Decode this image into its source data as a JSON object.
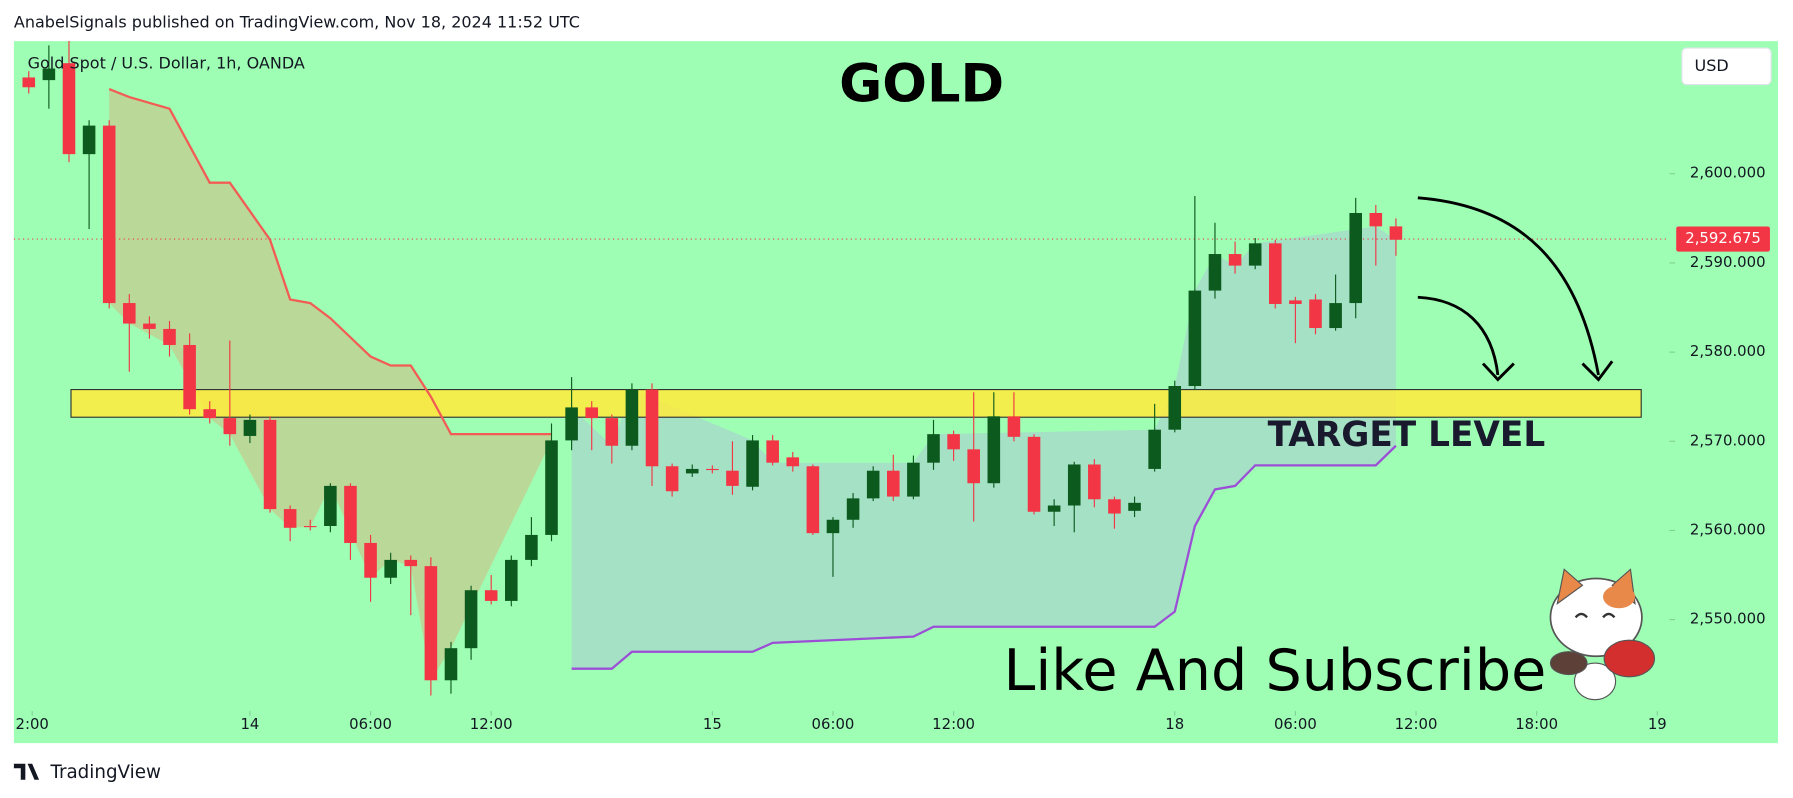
{
  "header": {
    "text": "AnabelSignals published on TradingView.com, Nov 18, 2024 11:52 UTC"
  },
  "footer": {
    "brand": "TradingView"
  },
  "chart_data": {
    "type": "candlestick",
    "title": "GOLD",
    "subtitle": "Gold Spot / U.S. Dollar, 1h, OANDA",
    "currency": "USD",
    "annotation": "Like And Subscribe",
    "up_color": "#0d5a1e",
    "down_color": "#f23645",
    "x": [
      0,
      1,
      2,
      3,
      4,
      5,
      6,
      7,
      8,
      9,
      10,
      11,
      12,
      13,
      14,
      15,
      16,
      17,
      18,
      19,
      20,
      21,
      22,
      23,
      24,
      25,
      26,
      27,
      28,
      29,
      30,
      31,
      32,
      33,
      34,
      35,
      36,
      37,
      38,
      39,
      40,
      41,
      42,
      43,
      44,
      45,
      46,
      47,
      48,
      49,
      50,
      51,
      52,
      53,
      54,
      55,
      56,
      57,
      58,
      59,
      60,
      61,
      62,
      63,
      64,
      65,
      66,
      67,
      68
    ],
    "open": [
      2610.8,
      2610.5,
      2612.4,
      2602.2,
      2605.4,
      2585.5,
      2583.2,
      2582.6,
      2580.8,
      2573.6,
      2572.6,
      2570.6,
      2572.4,
      2562.4,
      2560.5,
      2560.5,
      2565.0,
      2558.6,
      2554.7,
      2556.7,
      2556.0,
      2543.2,
      2546.8,
      2553.3,
      2552.1,
      2556.7,
      2559.5,
      2570.1,
      2573.8,
      2572.6,
      2569.5,
      2575.8,
      2567.2,
      2566.4,
      2566.9,
      2566.7,
      2564.9,
      2570.1,
      2568.2,
      2567.2,
      2559.7,
      2561.2,
      2563.6,
      2566.7,
      2563.8,
      2567.6,
      2570.8,
      2569.1,
      2565.3,
      2572.8,
      2570.5,
      2562.1,
      2562.8,
      2567.4,
      2563.5,
      2562.2,
      2566.9,
      2571.3,
      2576.2,
      2586.9,
      2591.0,
      2589.7,
      2592.2,
      2585.8,
      2585.9,
      2582.7,
      2585.5,
      2595.6,
      2594.1
    ],
    "high": [
      2611.5,
      2614.4,
      2614.9,
      2606.0,
      2606.0,
      2586.5,
      2584.0,
      2583.5,
      2582.1,
      2574.5,
      2581.3,
      2573.0,
      2572.8,
      2562.8,
      2561.2,
      2565.3,
      2565.3,
      2559.5,
      2557.5,
      2557.2,
      2557.0,
      2547.5,
      2553.8,
      2555.0,
      2557.2,
      2561.5,
      2572.0,
      2577.2,
      2574.5,
      2573.0,
      2576.5,
      2576.5,
      2567.5,
      2567.4,
      2567.3,
      2570.0,
      2570.7,
      2570.7,
      2568.8,
      2567.4,
      2561.5,
      2564.2,
      2567.2,
      2568.5,
      2568.4,
      2572.4,
      2571.2,
      2575.5,
      2575.5,
      2575.5,
      2570.8,
      2563.5,
      2567.7,
      2568.0,
      2563.8,
      2563.8,
      2574.2,
      2576.8,
      2597.5,
      2594.5,
      2592.4,
      2592.8,
      2592.6,
      2586.2,
      2586.5,
      2588.7,
      2597.3,
      2596.5,
      2595.0
    ],
    "low": [
      2609.0,
      2607.3,
      2601.3,
      2593.8,
      2584.9,
      2577.8,
      2581.5,
      2579.5,
      2573.0,
      2572.0,
      2569.5,
      2569.8,
      2562.0,
      2558.8,
      2560.0,
      2559.8,
      2556.7,
      2552.0,
      2554.0,
      2550.5,
      2541.5,
      2541.7,
      2545.5,
      2551.7,
      2551.5,
      2556.0,
      2558.8,
      2569.0,
      2569.0,
      2567.5,
      2569.0,
      2565.0,
      2563.8,
      2566.0,
      2566.4,
      2564.0,
      2564.5,
      2567.3,
      2566.6,
      2559.5,
      2554.8,
      2560.3,
      2563.3,
      2563.3,
      2563.5,
      2566.8,
      2567.8,
      2561.0,
      2564.8,
      2570.0,
      2561.8,
      2560.5,
      2559.8,
      2562.6,
      2560.2,
      2561.5,
      2566.6,
      2571.0,
      2575.8,
      2586.0,
      2588.8,
      2589.3,
      2584.9,
      2581.0,
      2582.0,
      2582.4,
      2583.8,
      2589.7,
      2590.8
    ],
    "close": [
      2609.7,
      2611.8,
      2602.2,
      2605.4,
      2585.5,
      2583.2,
      2582.6,
      2580.8,
      2573.6,
      2572.6,
      2570.8,
      2572.4,
      2562.4,
      2560.3,
      2560.4,
      2565.0,
      2558.6,
      2554.7,
      2556.7,
      2556.0,
      2543.2,
      2546.8,
      2553.3,
      2552.1,
      2556.7,
      2559.5,
      2570.1,
      2573.8,
      2572.6,
      2569.5,
      2575.8,
      2567.2,
      2564.4,
      2566.9,
      2566.8,
      2565.0,
      2570.1,
      2567.6,
      2567.2,
      2559.7,
      2561.2,
      2563.6,
      2566.7,
      2563.8,
      2567.6,
      2570.8,
      2569.1,
      2565.3,
      2572.8,
      2570.5,
      2562.1,
      2562.8,
      2567.4,
      2563.5,
      2561.9,
      2563.1,
      2571.3,
      2576.2,
      2586.9,
      2591.0,
      2589.7,
      2592.2,
      2585.4,
      2585.4,
      2582.7,
      2585.5,
      2595.6,
      2594.1,
      2592.6
    ],
    "overlays": [
      {
        "color": "#f25c54",
        "fill": "#d2b882",
        "x": [
          4,
          5,
          7,
          9,
          10,
          12,
          13,
          14,
          15,
          17,
          18,
          19,
          20,
          21,
          26
        ],
        "values": [
          2609.5,
          2608.6,
          2607.3,
          2599.0,
          2599.0,
          2592.6,
          2585.9,
          2585.5,
          2583.8,
          2579.5,
          2578.5,
          2578.5,
          2575.0,
          2570.8,
          2570.8
        ]
      },
      {
        "color": "#9c4fd6",
        "fill": "#a9c8d4",
        "x": [
          27,
          29,
          30,
          36,
          37,
          44,
          45,
          56,
          57,
          58,
          59,
          60,
          61,
          67,
          68
        ],
        "values": [
          2544.5,
          2544.5,
          2546.4,
          2546.4,
          2547.4,
          2548.1,
          2549.2,
          2549.2,
          2550.9,
          2560.5,
          2564.6,
          2565.0,
          2567.3,
          2567.3,
          2569.5
        ]
      }
    ],
    "target_zone": {
      "label": "TARGET LEVEL",
      "from": 2572.7,
      "to": 2575.8,
      "x": [
        2.1,
        80.2
      ],
      "color": "#ffeb3b"
    },
    "last_price": {
      "value": 2592.675,
      "label": "2,592.675"
    },
    "xlim": [
      -0.74,
      81.6
    ],
    "ylim": [
      2540,
      2614.87
    ],
    "xticks": [
      {
        "value": 0.17,
        "label": "2:00"
      },
      {
        "value": 11,
        "label": "14"
      },
      {
        "value": 17,
        "label": "06:00"
      },
      {
        "value": 23,
        "label": "12:00"
      },
      {
        "value": 34,
        "label": "15"
      },
      {
        "value": 40,
        "label": "06:00"
      },
      {
        "value": 46,
        "label": "12:00"
      },
      {
        "value": 57,
        "label": "18"
      },
      {
        "value": 63,
        "label": "06:00"
      },
      {
        "value": 69,
        "label": "12:00"
      },
      {
        "value": 75,
        "label": "18:00"
      },
      {
        "value": 81,
        "label": "19"
      }
    ],
    "yticks": [
      {
        "value": 2550,
        "label": "2,550.000"
      },
      {
        "value": 2560,
        "label": "2,560.000"
      },
      {
        "value": 2570,
        "label": "2,570.000"
      },
      {
        "value": 2580,
        "label": "2,580.000"
      },
      {
        "value": 2590,
        "label": "2,590.000"
      },
      {
        "value": 2600,
        "label": "2,600.000"
      }
    ]
  }
}
